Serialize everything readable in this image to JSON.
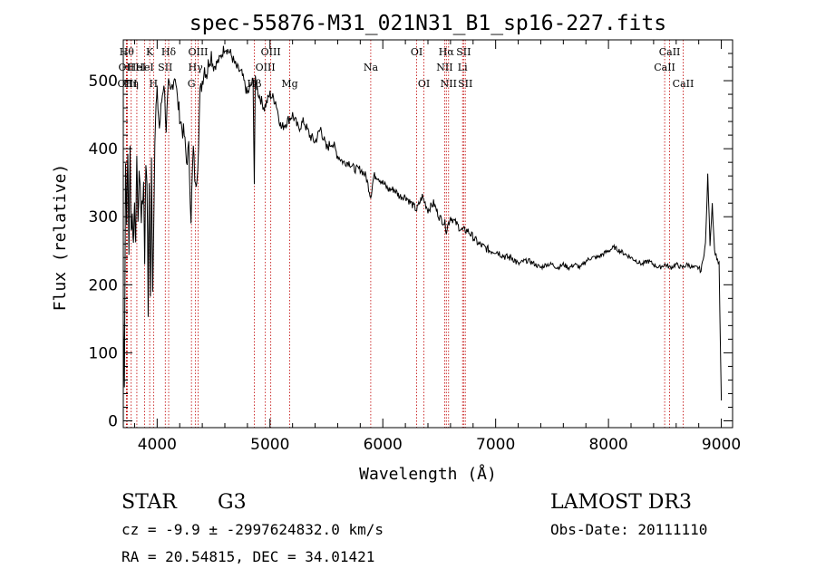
{
  "chart_data": {
    "type": "line",
    "title": "spec-55876-M31_021N31_B1_sp16-227.fits",
    "xlabel": "Wavelength (Å)",
    "ylabel": "Flux (relative)",
    "xlim": [
      3700,
      9100
    ],
    "ylim": [
      -10,
      560
    ],
    "xticks": [
      4000,
      5000,
      6000,
      7000,
      8000,
      9000
    ],
    "yticks": [
      0,
      100,
      200,
      300,
      400,
      500
    ],
    "grid": false,
    "series": [
      {
        "x": [
          3700,
          3710,
          3720,
          3730,
          3740,
          3750,
          3760,
          3770,
          3780,
          3790,
          3800,
          3810,
          3820,
          3830,
          3840,
          3850,
          3860,
          3870,
          3880,
          3890,
          3900,
          3910,
          3920,
          3930,
          3940,
          3950,
          3960,
          3970,
          3980,
          3990,
          4000,
          4020,
          4040,
          4060,
          4080,
          4100,
          4120,
          4140,
          4160,
          4180,
          4200,
          4220,
          4240,
          4260,
          4280,
          4300,
          4320,
          4340,
          4360,
          4380,
          4400,
          4420,
          4440,
          4460,
          4480,
          4500,
          4550,
          4600,
          4650,
          4700,
          4750,
          4800,
          4850,
          4861,
          4870,
          4900,
          4950,
          5000,
          5050,
          5100,
          5150,
          5200,
          5250,
          5300,
          5350,
          5400,
          5450,
          5500,
          5550,
          5600,
          5650,
          5700,
          5750,
          5800,
          5850,
          5893,
          5920,
          5950,
          6000,
          6050,
          6100,
          6150,
          6200,
          6250,
          6300,
          6350,
          6400,
          6450,
          6500,
          6550,
          6563,
          6600,
          6650,
          6700,
          6750,
          6800,
          6850,
          6900,
          6950,
          7000,
          7050,
          7100,
          7150,
          7200,
          7250,
          7300,
          7350,
          7400,
          7450,
          7500,
          7550,
          7600,
          7650,
          7700,
          7750,
          7800,
          7850,
          7900,
          7950,
          8000,
          8050,
          8100,
          8150,
          8200,
          8250,
          8300,
          8350,
          8400,
          8450,
          8500,
          8550,
          8600,
          8650,
          8700,
          8750,
          8800,
          8820,
          8840,
          8860,
          8880,
          8900,
          8920,
          8940,
          8960,
          8980,
          9000
        ],
        "y": [
          150,
          60,
          380,
          300,
          390,
          250,
          400,
          280,
          300,
          260,
          330,
          250,
          400,
          280,
          370,
          340,
          300,
          320,
          350,
          240,
          380,
          360,
          160,
          350,
          180,
          380,
          200,
          290,
          420,
          460,
          480,
          430,
          470,
          500,
          430,
          490,
          480,
          500,
          510,
          470,
          450,
          430,
          420,
          380,
          400,
          300,
          400,
          340,
          380,
          480,
          500,
          520,
          510,
          530,
          540,
          520,
          530,
          550,
          540,
          520,
          510,
          480,
          500,
          350,
          500,
          480,
          460,
          480,
          470,
          430,
          440,
          450,
          430,
          440,
          420,
          410,
          430,
          400,
          410,
          390,
          380,
          380,
          370,
          370,
          360,
          330,
          360,
          360,
          350,
          340,
          340,
          330,
          330,
          320,
          310,
          330,
          310,
          320,
          300,
          290,
          280,
          300,
          290,
          280,
          280,
          270,
          260,
          255,
          250,
          250,
          245,
          240,
          240,
          230,
          235,
          235,
          230,
          225,
          230,
          230,
          225,
          230,
          225,
          230,
          225,
          235,
          240,
          240,
          245,
          250,
          255,
          250,
          245,
          240,
          235,
          230,
          235,
          230,
          225,
          230,
          225,
          230,
          225,
          230,
          225,
          225,
          220,
          240,
          260,
          360,
          260,
          320,
          250,
          240,
          230,
          30
        ],
        "color": "#000000"
      }
    ],
    "lines": [
      {
        "x": 3730,
        "label": "Hθ",
        "row": 1
      },
      {
        "x": 3727,
        "label": "OII",
        "row": 2
      },
      {
        "x": 3736,
        "label": "OIII",
        "row": 3
      },
      {
        "x": 3770,
        "label": "Hη",
        "row": 3
      },
      {
        "x": 3820,
        "label": "HeI",
        "row": 2
      },
      {
        "x": 3889,
        "label": "HeI",
        "row": 2
      },
      {
        "x": 3934,
        "label": "K",
        "row": 1
      },
      {
        "x": 3968,
        "label": "H",
        "row": 3
      },
      {
        "x": 4072,
        "label": "SII",
        "row": 2
      },
      {
        "x": 4102,
        "label": "Hδ",
        "row": 1
      },
      {
        "x": 4304,
        "label": "G",
        "row": 3
      },
      {
        "x": 4340,
        "label": "Hγ",
        "row": 2
      },
      {
        "x": 4363,
        "label": "OIII",
        "row": 1
      },
      {
        "x": 4861,
        "label": "Hβ",
        "row": 3
      },
      {
        "x": 4959,
        "label": "OIII",
        "row": 2
      },
      {
        "x": 5007,
        "label": "OIII",
        "row": 1
      },
      {
        "x": 5175,
        "label": "Mg",
        "row": 3
      },
      {
        "x": 5893,
        "label": "Na",
        "row": 2
      },
      {
        "x": 6300,
        "label": "OI",
        "row": 1
      },
      {
        "x": 6364,
        "label": "OI",
        "row": 3
      },
      {
        "x": 6548,
        "label": "NII",
        "row": 2
      },
      {
        "x": 6563,
        "label": "Hα",
        "row": 1
      },
      {
        "x": 6583,
        "label": "NII",
        "row": 3
      },
      {
        "x": 6707,
        "label": "Li",
        "row": 2
      },
      {
        "x": 6716,
        "label": "SII",
        "row": 1
      },
      {
        "x": 6731,
        "label": "SII",
        "row": 3
      },
      {
        "x": 8498,
        "label": "CaII",
        "row": 2
      },
      {
        "x": 8542,
        "label": "CaII",
        "row": 1
      },
      {
        "x": 8662,
        "label": "CaII",
        "row": 3
      }
    ]
  },
  "info": {
    "class": "STAR",
    "subclass": "G3",
    "survey": "LAMOST DR3",
    "cz": "cz = -9.9 ± -2997624832.0 km/s",
    "obs_date": "Obs-Date: 20111110",
    "coords": "RA =  20.54815, DEC =  34.01421"
  },
  "colors": {
    "spectrum": "#000000",
    "line_markers": "#c00000",
    "background": "#ffffff"
  }
}
